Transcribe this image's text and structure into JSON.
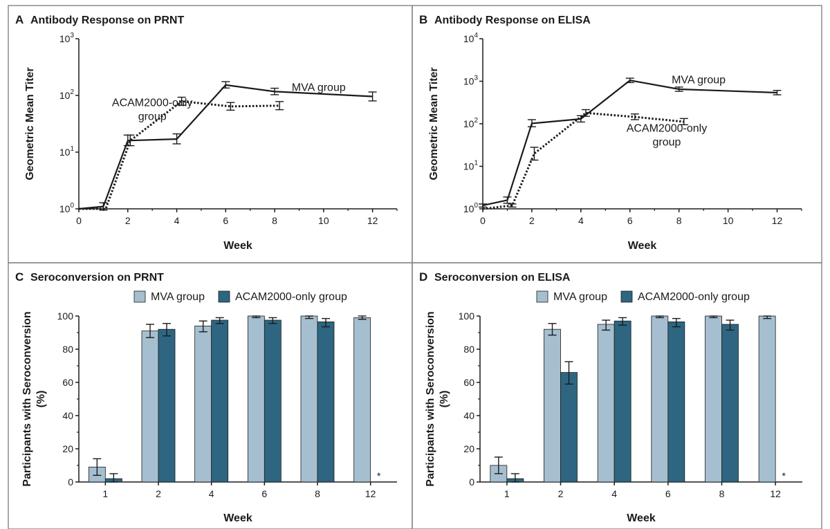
{
  "chart_data": [
    {
      "panel": "A",
      "title": "Antibody Response on PRNT",
      "type": "line",
      "xlabel": "Week",
      "ylabel": "Geometric Mean Titer",
      "yscale": "log",
      "xlim": [
        0,
        13
      ],
      "ylim": [
        1,
        1000
      ],
      "xticks": [
        0,
        2,
        4,
        6,
        8,
        10,
        12
      ],
      "yticks": [
        {
          "value": 1,
          "base": "10",
          "exp": "0"
        },
        {
          "value": 10,
          "base": "10",
          "exp": "1"
        },
        {
          "value": 100,
          "base": "10",
          "exp": "2"
        },
        {
          "value": 1000,
          "base": "10",
          "exp": "3"
        }
      ],
      "series": [
        {
          "name": "MVA group",
          "style": "solid",
          "points": [
            {
              "x": 0,
              "y": 1.0
            },
            {
              "x": 1,
              "y": 1.1,
              "lo": 0.95,
              "hi": 1.28
            },
            {
              "x": 2,
              "y": 16,
              "lo": 13,
              "hi": 20
            },
            {
              "x": 4,
              "y": 17,
              "lo": 14,
              "hi": 21
            },
            {
              "x": 6,
              "y": 153,
              "lo": 135,
              "hi": 175
            },
            {
              "x": 8,
              "y": 117,
              "lo": 103,
              "hi": 134
            },
            {
              "x": 12,
              "y": 96,
              "lo": 80,
              "hi": 115
            }
          ]
        },
        {
          "name": "ACAM2000-only group",
          "style": "dotted",
          "points": [
            {
              "x": 0,
              "y": 1.0
            },
            {
              "x": 1.1,
              "y": 1.0
            },
            {
              "x": 2.1,
              "y": 16,
              "lo": 13,
              "hi": 20
            },
            {
              "x": 4.2,
              "y": 79,
              "lo": 67,
              "hi": 93
            },
            {
              "x": 6.2,
              "y": 64,
              "lo": 55,
              "hi": 75
            },
            {
              "x": 8.2,
              "y": 66,
              "lo": 56,
              "hi": 78
            }
          ]
        }
      ],
      "annotations": [
        {
          "lines": [
            "MVA group"
          ],
          "x": 9.8,
          "y": 120
        },
        {
          "lines": [
            "ACAM2000-only",
            "group"
          ],
          "x": 3.0,
          "y": 65
        }
      ]
    },
    {
      "panel": "B",
      "title": "Antibody Response on ELISA",
      "type": "line",
      "xlabel": "Week",
      "ylabel": "Geometric Mean Titer",
      "yscale": "log",
      "xlim": [
        0,
        13
      ],
      "ylim": [
        1,
        10000
      ],
      "xticks": [
        0,
        2,
        4,
        6,
        8,
        10,
        12
      ],
      "yticks": [
        {
          "value": 1,
          "base": "10",
          "exp": "0"
        },
        {
          "value": 10,
          "base": "10",
          "exp": "1"
        },
        {
          "value": 100,
          "base": "10",
          "exp": "2"
        },
        {
          "value": 1000,
          "base": "10",
          "exp": "3"
        },
        {
          "value": 10000,
          "base": "10",
          "exp": "4"
        }
      ],
      "series": [
        {
          "name": "MVA group",
          "style": "solid",
          "points": [
            {
              "x": 0,
              "y": 1.2,
              "lo": 1.1,
              "hi": 1.3
            },
            {
              "x": 1,
              "y": 1.6,
              "lo": 1.35,
              "hi": 1.9
            },
            {
              "x": 2,
              "y": 102,
              "lo": 85,
              "hi": 125
            },
            {
              "x": 4,
              "y": 130,
              "lo": 110,
              "hi": 155
            },
            {
              "x": 6,
              "y": 1050,
              "lo": 930,
              "hi": 1180
            },
            {
              "x": 8,
              "y": 650,
              "lo": 580,
              "hi": 730
            },
            {
              "x": 12,
              "y": 540,
              "lo": 480,
              "hi": 610
            }
          ]
        },
        {
          "name": "ACAM2000-only group",
          "style": "dotted",
          "points": [
            {
              "x": 0,
              "y": 1.0
            },
            {
              "x": 1.2,
              "y": 1.2,
              "lo": 1.1,
              "hi": 1.3
            },
            {
              "x": 2.1,
              "y": 20,
              "lo": 14,
              "hi": 28
            },
            {
              "x": 4.2,
              "y": 180,
              "lo": 150,
              "hi": 215
            },
            {
              "x": 6.2,
              "y": 145,
              "lo": 125,
              "hi": 170
            },
            {
              "x": 8.2,
              "y": 112,
              "lo": 95,
              "hi": 133
            }
          ]
        }
      ],
      "annotations": [
        {
          "lines": [
            "MVA group"
          ],
          "x": 8.8,
          "y": 900
        },
        {
          "lines": [
            "ACAM2000-only",
            "group"
          ],
          "x": 7.5,
          "y": 65
        }
      ]
    },
    {
      "panel": "C",
      "title": "Seroconversion on PRNT",
      "type": "bar",
      "xlabel": "Week",
      "ylabel_lines": [
        "Participants with Seroconversion",
        "(%)"
      ],
      "ylim": [
        0,
        100
      ],
      "yticks": [
        0,
        20,
        40,
        60,
        80,
        100
      ],
      "categories": [
        "1",
        "2",
        "4",
        "6",
        "8",
        "12"
      ],
      "series": [
        {
          "name": "MVA group",
          "color": "#a5bfd0",
          "values": [
            9,
            91,
            94,
            100,
            100,
            99
          ],
          "errors": [
            [
              4,
              14
            ],
            [
              87,
              95
            ],
            [
              90.5,
              97
            ],
            [
              99,
              100
            ],
            [
              98.5,
              100
            ],
            [
              98,
              100
            ]
          ]
        },
        {
          "name": "ACAM2000-only group",
          "color": "#2e6681",
          "values": [
            2,
            92,
            97.5,
            97.5,
            96.5,
            null
          ],
          "errors": [
            [
              0,
              5
            ],
            [
              88,
              95.5
            ],
            [
              95.5,
              99
            ],
            [
              95.5,
              99
            ],
            [
              93.5,
              98.5
            ],
            null
          ]
        }
      ],
      "annotations": [
        {
          "text": "*",
          "category": "12"
        }
      ]
    },
    {
      "panel": "D",
      "title": "Seroconversion on ELISA",
      "type": "bar",
      "xlabel": "Week",
      "ylabel_lines": [
        "Participants with Seroconversion",
        "(%)"
      ],
      "ylim": [
        0,
        100
      ],
      "yticks": [
        0,
        20,
        40,
        60,
        80,
        100
      ],
      "categories": [
        "1",
        "2",
        "4",
        "6",
        "8",
        "12"
      ],
      "series": [
        {
          "name": "MVA group",
          "color": "#a5bfd0",
          "values": [
            10,
            92,
            95,
            100,
            100,
            100
          ],
          "errors": [
            [
              5,
              15
            ],
            [
              88.5,
              95.5
            ],
            [
              91.5,
              97.5
            ],
            [
              99,
              100
            ],
            [
              99,
              100
            ],
            [
              98.5,
              100
            ]
          ]
        },
        {
          "name": "ACAM2000-only group",
          "color": "#2e6681",
          "values": [
            2,
            66,
            97,
            96.5,
            95,
            null
          ],
          "errors": [
            [
              0,
              5
            ],
            [
              59,
              72.5
            ],
            [
              94.5,
              99
            ],
            [
              93.5,
              98.5
            ],
            [
              91.5,
              97.5
            ],
            null
          ]
        }
      ],
      "annotations": [
        {
          "text": "*",
          "category": "12"
        }
      ]
    }
  ]
}
